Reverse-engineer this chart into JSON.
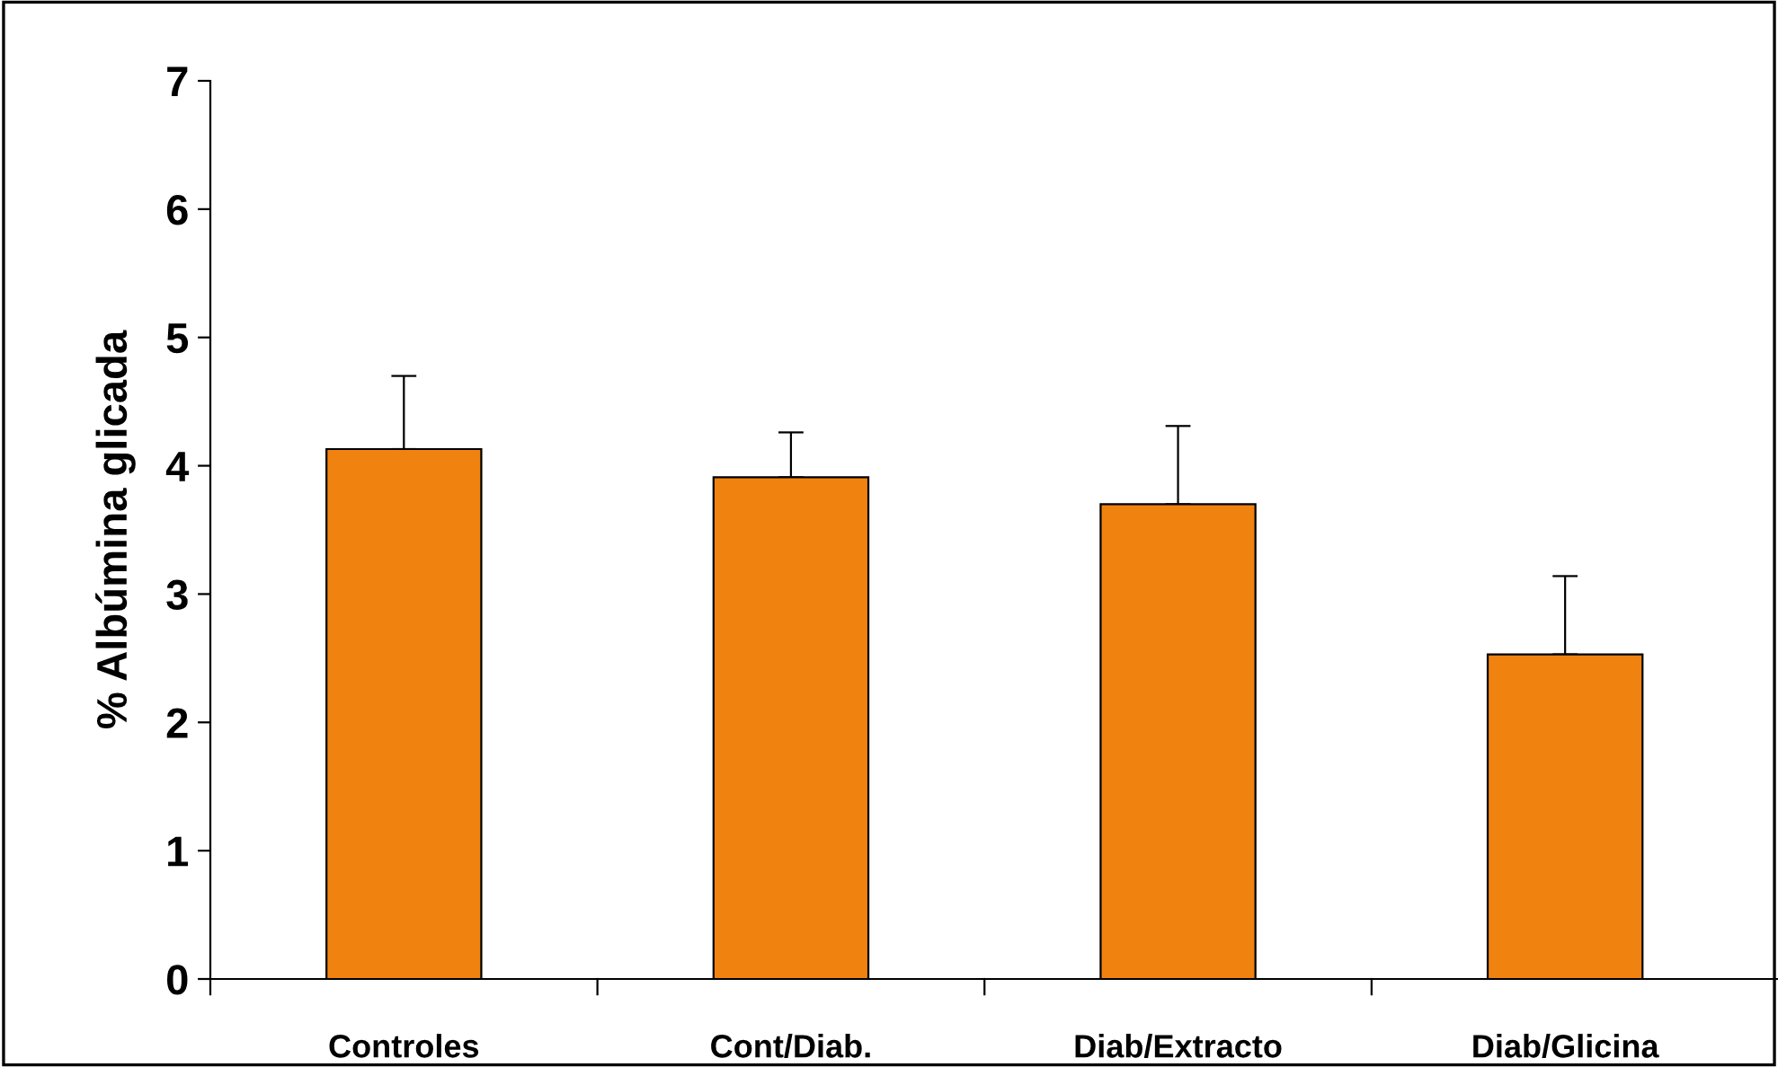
{
  "chart_data": {
    "type": "bar",
    "ylabel": "% Albúmina glicada",
    "categories": [
      "Controles",
      "Cont/Diab.",
      "Diab/Extracto",
      "Diab/Glicina"
    ],
    "values": [
      4.13,
      3.91,
      3.7,
      2.53
    ],
    "color": "#f0820f",
    "errors": [
      [
        4.13,
        4.7
      ],
      [
        3.91,
        4.26
      ],
      [
        3.7,
        4.31
      ],
      [
        2.53,
        3.14
      ]
    ],
    "ylim": [
      0,
      7
    ],
    "yticks": [
      0,
      1,
      2,
      3,
      4,
      5,
      6,
      7
    ],
    "grid": false,
    "legend": false
  }
}
